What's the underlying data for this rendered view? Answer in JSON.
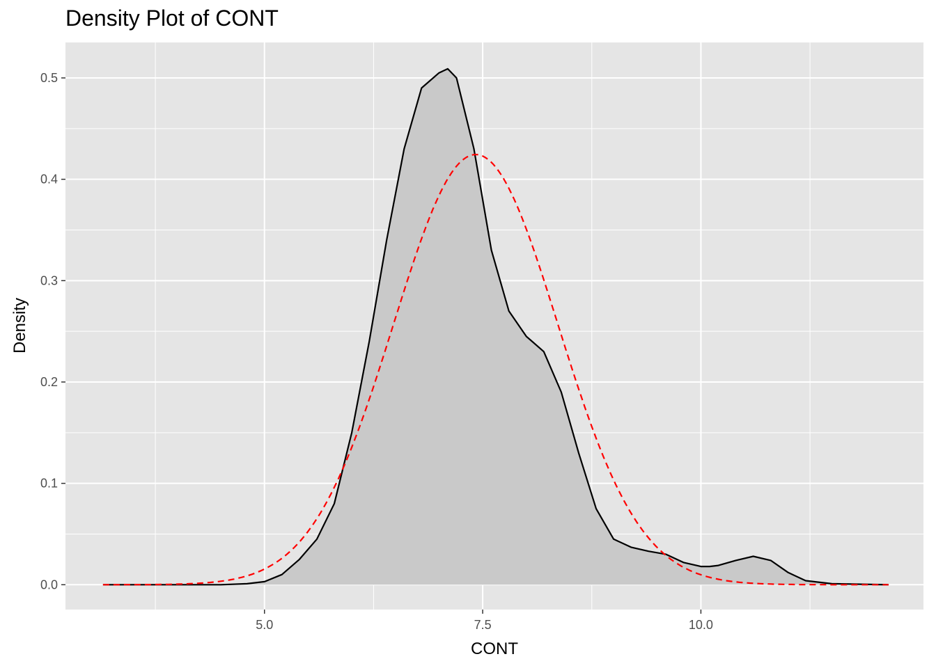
{
  "chart_data": {
    "type": "area",
    "title": "Density Plot of CONT",
    "xlabel": "CONT",
    "ylabel": "Density",
    "xlim": [
      2.72,
      12.55
    ],
    "ylim": [
      -0.0245,
      0.535
    ],
    "x_ticks": [
      5.0,
      7.5,
      10.0
    ],
    "x_tick_labels": [
      "5.0",
      "7.5",
      "10.0"
    ],
    "y_ticks": [
      0.0,
      0.1,
      0.2,
      0.3,
      0.4,
      0.5
    ],
    "y_tick_labels": [
      "0.0",
      "0.1",
      "0.2",
      "0.3",
      "0.4",
      "0.5"
    ],
    "grid": true,
    "series": [
      {
        "style": "solid-filled",
        "color": "#000000",
        "fill": "#c9c9c9",
        "x": [
          3.15,
          3.5,
          4.0,
          4.5,
          4.8,
          5.0,
          5.2,
          5.4,
          5.6,
          5.8,
          6.0,
          6.2,
          6.4,
          6.6,
          6.8,
          7.0,
          7.1,
          7.2,
          7.4,
          7.6,
          7.8,
          8.0,
          8.2,
          8.4,
          8.6,
          8.8,
          9.0,
          9.2,
          9.4,
          9.6,
          9.8,
          10.0,
          10.1,
          10.2,
          10.4,
          10.6,
          10.8,
          11.0,
          11.2,
          11.5,
          12.15
        ],
        "y": [
          0.0,
          0.0,
          0.0,
          0.0,
          0.001,
          0.003,
          0.01,
          0.025,
          0.045,
          0.08,
          0.15,
          0.24,
          0.34,
          0.43,
          0.49,
          0.505,
          0.509,
          0.5,
          0.43,
          0.33,
          0.27,
          0.245,
          0.23,
          0.19,
          0.13,
          0.075,
          0.045,
          0.037,
          0.033,
          0.03,
          0.022,
          0.018,
          0.018,
          0.019,
          0.024,
          0.028,
          0.024,
          0.012,
          0.004,
          0.001,
          0.0
        ]
      },
      {
        "style": "dashed",
        "color": "#ff0000",
        "mean": 7.42,
        "sd": 0.94,
        "x_range": [
          3.15,
          12.15
        ]
      }
    ]
  }
}
